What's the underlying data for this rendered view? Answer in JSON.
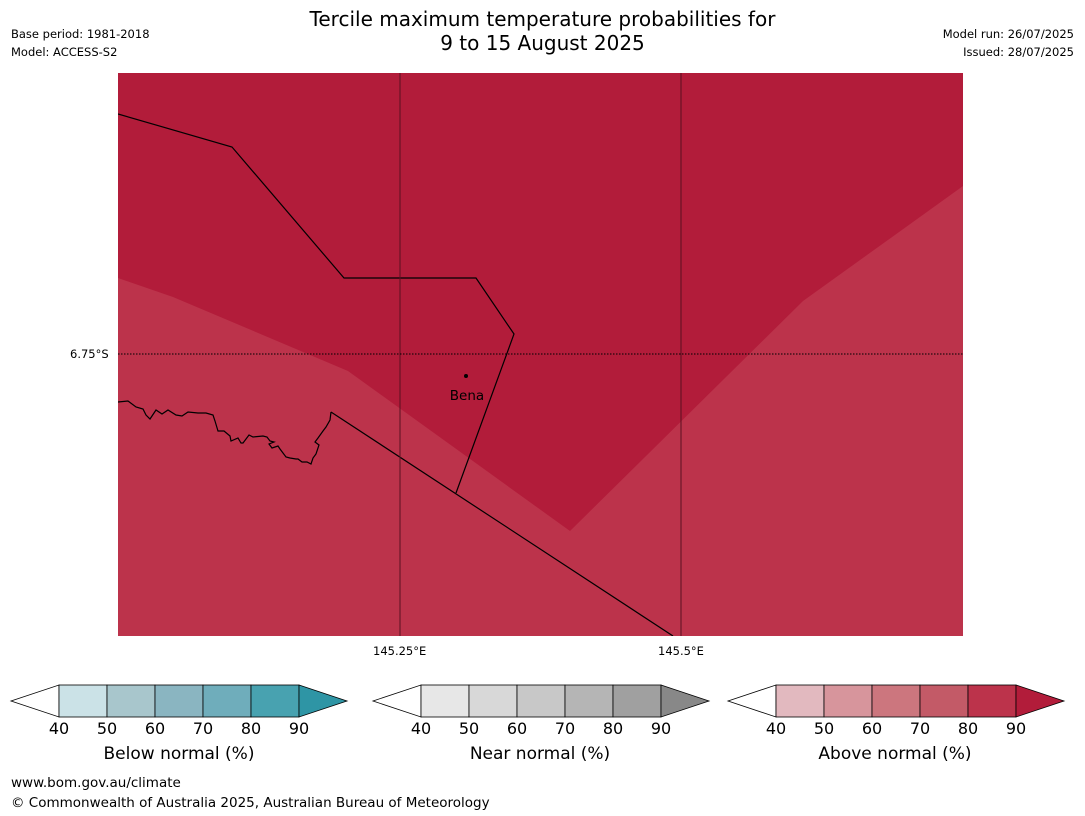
{
  "header": {
    "title_line1": "Tercile maximum temperature probabilities for",
    "title_line2": "9 to 15 August 2025",
    "base_period": "Base period: 1981-2018",
    "model": "Model: ACCESS-S2",
    "model_run": "Model run: 26/07/2025",
    "issued": "Issued: 28/07/2025"
  },
  "map": {
    "latitude_label": "6.75°S",
    "longitude_labels": [
      "145.25°E",
      "145.5°E"
    ],
    "place": "Bena",
    "colors": {
      "above_90": "#b21c3a",
      "above_80": "#bc334b"
    }
  },
  "legends": {
    "ticks": [
      "40",
      "50",
      "60",
      "70",
      "80",
      "90"
    ],
    "below": {
      "title": "Below normal (%)",
      "colors": [
        "#cbe2e7",
        "#a8c6cc",
        "#8ab5c1",
        "#6fadbb",
        "#48a2b0",
        "#2e95a5"
      ]
    },
    "near": {
      "title": "Near normal (%)",
      "colors": [
        "#e7e7e7",
        "#d8d8d8",
        "#c8c8c8",
        "#b5b5b5",
        "#a0a0a0",
        "#888888"
      ]
    },
    "above": {
      "title": "Above normal (%)",
      "colors": [
        "#e2b9bf",
        "#d7959c",
        "#cc767e",
        "#c35a67",
        "#bc334b",
        "#b21c3a"
      ]
    }
  },
  "footer": {
    "url": "www.bom.gov.au/climate",
    "copyright": "© Commonwealth of Australia 2025, Australian Bureau of Meteorology"
  }
}
